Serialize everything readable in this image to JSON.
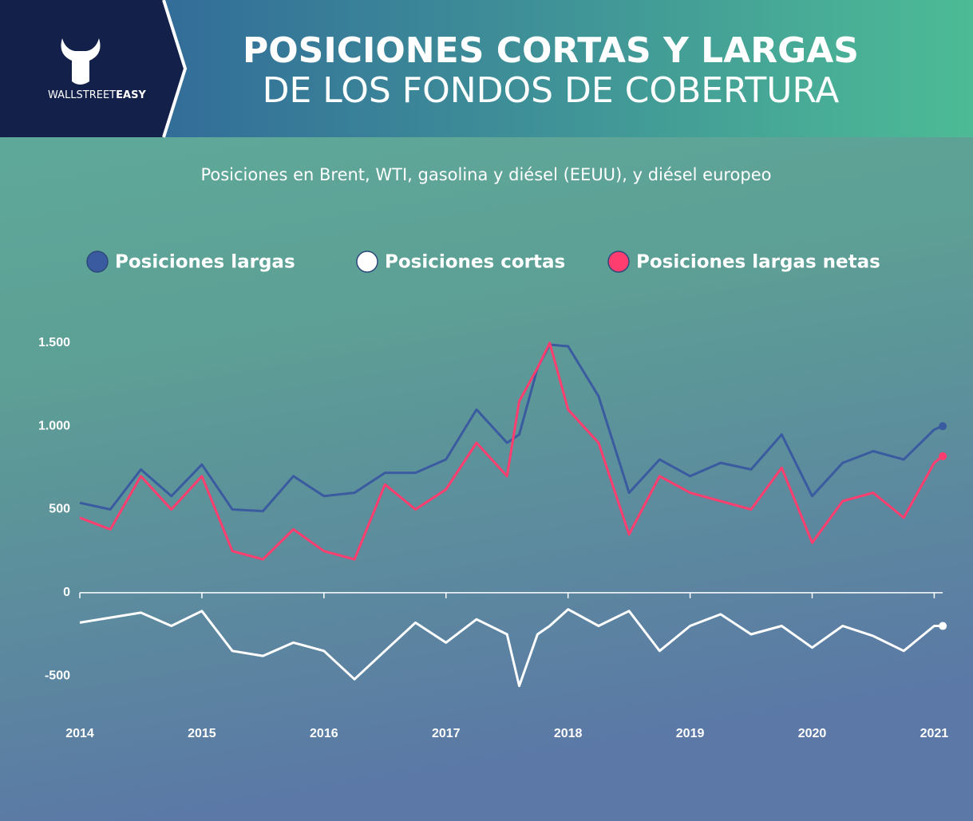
{
  "header": {
    "brand_light": "WALLSTREET",
    "brand_bold": "EASY",
    "title_bold": "POSICIONES CORTAS Y LARGAS",
    "title_light": "DE LOS FONDOS DE COBERTURA"
  },
  "chart_data": {
    "type": "line",
    "subtitle": "Posiciones en Brent, WTI, gasolina y diésel (EEUU), y diésel europeo",
    "x": [
      2014,
      2014.25,
      2014.5,
      2014.75,
      2015,
      2015.25,
      2015.5,
      2015.75,
      2016,
      2016.25,
      2016.5,
      2016.75,
      2017,
      2017.25,
      2017.5,
      2017.6,
      2017.75,
      2017.85,
      2018,
      2018.25,
      2018.5,
      2018.75,
      2019,
      2019.25,
      2019.5,
      2019.75,
      2020,
      2020.25,
      2020.5,
      2020.75,
      2021,
      2021.07
    ],
    "series": [
      {
        "name": "Posiciones largas",
        "color": "#3a5ba0",
        "values": [
          540,
          500,
          740,
          580,
          770,
          500,
          490,
          700,
          580,
          600,
          720,
          720,
          800,
          1100,
          900,
          950,
          1350,
          1490,
          1480,
          1180,
          600,
          800,
          700,
          780,
          740,
          950,
          580,
          780,
          850,
          800,
          980,
          1000
        ]
      },
      {
        "name": "Posiciones cortas",
        "color": "#ffffff",
        "values": [
          -180,
          -150,
          -120,
          -200,
          -110,
          -350,
          -380,
          -300,
          -350,
          -520,
          -350,
          -180,
          -300,
          -160,
          -250,
          -560,
          -250,
          -200,
          -100,
          -200,
          -110,
          -350,
          -200,
          -130,
          -250,
          -200,
          -330,
          -200,
          -260,
          -350,
          -200,
          -200
        ]
      },
      {
        "name": "Posiciones largas netas",
        "color": "#ff3d6e",
        "values": [
          450,
          380,
          700,
          500,
          700,
          250,
          200,
          380,
          250,
          200,
          650,
          500,
          620,
          900,
          700,
          1150,
          1350,
          1500,
          1100,
          900,
          350,
          700,
          600,
          550,
          500,
          750,
          300,
          550,
          600,
          450,
          780,
          820
        ]
      }
    ],
    "xlim": [
      2014,
      2021.2
    ],
    "xticks": [
      2014,
      2015,
      2016,
      2017,
      2018,
      2019,
      2020,
      2021
    ],
    "ylim": [
      -600,
      1600
    ],
    "yticks": [
      {
        "value": 1500,
        "label": "1.500"
      },
      {
        "value": 1000,
        "label": "1.000"
      },
      500,
      0,
      -500
    ]
  }
}
